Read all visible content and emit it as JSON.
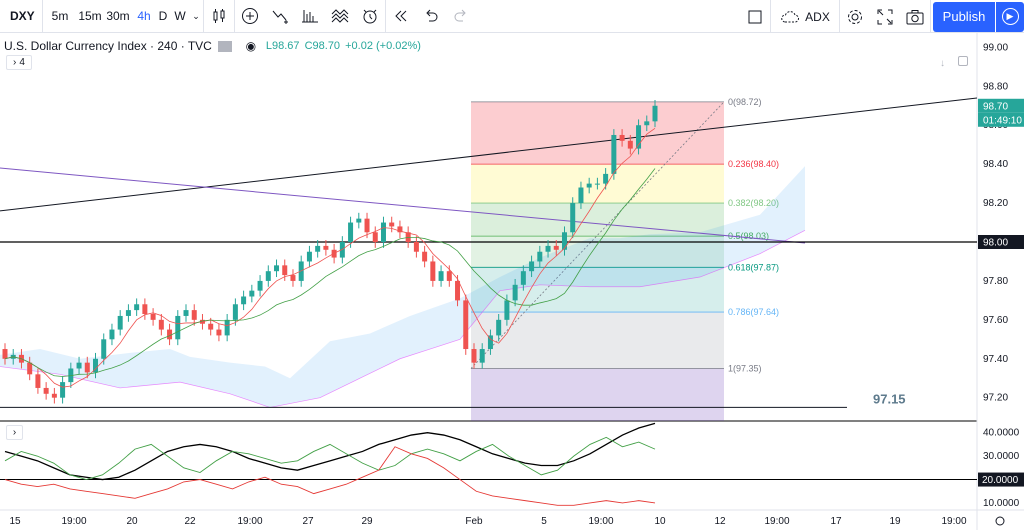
{
  "toolbar": {
    "symbol": "DXY",
    "intervals": [
      "5m",
      "15m",
      "30m",
      "4h",
      "D",
      "W"
    ],
    "active_interval": "4h",
    "indicator_label": "ADX",
    "publish_label": "Publish"
  },
  "legend": {
    "title": "U.S. Dollar Currency Index · 240 · TVC",
    "low": "L98.67",
    "close": "C98.70",
    "change": "+0.02 (+0.02%)",
    "indicator_count": "4"
  },
  "colors": {
    "up": "#26a69a",
    "down": "#ef5350",
    "accent": "#2962ff"
  },
  "price_scale": {
    "ticks": [
      "99.00",
      "98.80",
      "98.60",
      "98.40",
      "98.20",
      "98.00",
      "97.80",
      "97.60",
      "97.40",
      "97.20"
    ],
    "current_price": "98.70",
    "countdown": "01:49:10",
    "level_label": "98.00"
  },
  "fib": {
    "levels": [
      {
        "label": "0(98.72)",
        "value": 98.72
      },
      {
        "label": "0.236(98.40)",
        "value": 98.4
      },
      {
        "label": "0.382(98.20)",
        "value": 98.2
      },
      {
        "label": "0.5(98.03)",
        "value": 98.03
      },
      {
        "label": "0.618(97.87)",
        "value": 97.87
      },
      {
        "label": "0.786(97.64)",
        "value": 97.64
      },
      {
        "label": "1(97.35)",
        "value": 97.35
      }
    ]
  },
  "annotation": "97.15",
  "adx_scale": {
    "ticks": [
      "40.0000",
      "30.0000",
      "10.0000"
    ],
    "level_label": "20.0000"
  },
  "time_axis": {
    "labels": [
      "15",
      "19:00",
      "20",
      "22",
      "19:00",
      "27",
      "29",
      "Feb",
      "5",
      "19:00",
      "10",
      "12",
      "19:00",
      "17",
      "19",
      "19:00"
    ]
  },
  "icons": [
    "bar-style-icon",
    "add-indicator-icon",
    "indicators-icon",
    "compare-icon",
    "alert-icon",
    "replay-icon",
    "undo-icon",
    "redo-icon",
    "layout-icon",
    "templates-icon",
    "settings-icon",
    "fullscreen-icon",
    "snapshot-icon",
    "play-icon"
  ]
}
